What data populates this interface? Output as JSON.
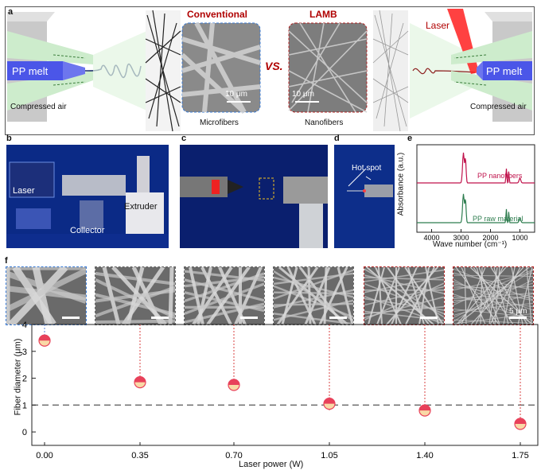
{
  "panel_labels": {
    "a": "a",
    "b": "b",
    "c": "c",
    "d": "d",
    "e": "e",
    "f": "f"
  },
  "panel_a": {
    "pp_melt_left": "PP melt",
    "pp_melt_right": "PP melt",
    "air_left": "Compressed air",
    "air_right": "Compressed air",
    "conventional": "Conventional",
    "lamb": "LAMB",
    "vs": "VS.",
    "laser": "Laser",
    "scale_left": "10 μm",
    "scale_right": "10 μm",
    "microfibers": "Microfibers",
    "nanofibers": "Nanofibers"
  },
  "panel_b": {
    "laser": "Laser",
    "collector": "Collector",
    "extruder": "Extruder"
  },
  "panel_d": {
    "hot_spot": "Hot spot"
  },
  "panel_e": {
    "ylabel": "Absorbance (a.u.)",
    "xlabel": "Wave number (cm⁻¹)",
    "ticks": [
      "4000",
      "3000",
      "2000",
      "1000"
    ],
    "legend_top": "PP nanofibers",
    "legend_bottom": "PP raw material",
    "color_top": "#c0134c",
    "color_bottom": "#2e7d4f"
  },
  "panel_f": {
    "scale_bar": "5 μm",
    "colors": {
      "marker": "#e8415a",
      "marker_fill": "#f9d9a6",
      "dashed": "#666666",
      "drop": "#d94040",
      "drop_blue": "#5b7fd6"
    }
  },
  "chart_data": {
    "type": "scatter",
    "title": "",
    "xlabel": "Laser power (W)",
    "ylabel": "Fiber diameter (μm)",
    "x_tick_labels": [
      "0.00",
      "0.35",
      "0.70",
      "1.05",
      "1.40",
      "1.75"
    ],
    "x": [
      0.0,
      0.35,
      0.7,
      1.05,
      1.4,
      1.75
    ],
    "y": [
      3.4,
      1.85,
      1.75,
      1.05,
      0.8,
      0.3
    ],
    "yerr": [
      0.15,
      0.2,
      0.2,
      0.25,
      0.1,
      0.1
    ],
    "ylim": [
      -0.5,
      4
    ],
    "y_ticks": [
      0,
      1,
      2,
      3,
      4
    ],
    "reference_line_y": 1,
    "grid": false
  }
}
